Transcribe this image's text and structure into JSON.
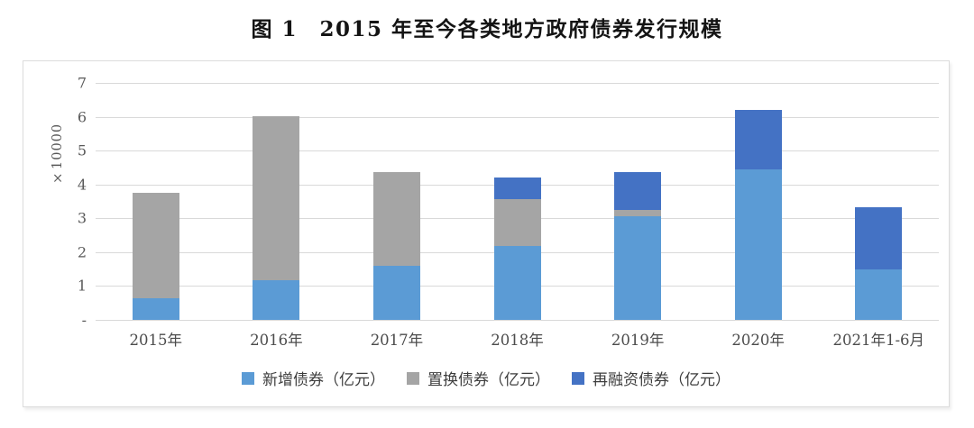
{
  "header": {
    "title": "图 1　2015 年至今各类地方政府债券发行规模"
  },
  "chart_data": {
    "type": "bar",
    "stacked": true,
    "figure_label": "图1",
    "title": "2015年至今各类地方政府债券发行规模",
    "unit_label": "×10000",
    "value_unit": "亿元",
    "categories": [
      "2015年",
      "2016年",
      "2017年",
      "2018年",
      "2019年",
      "2020年",
      "2021年1-6月"
    ],
    "series": [
      {
        "key": "new-bonds",
        "name": "新增债券（亿元）",
        "color": "#5B9BD5",
        "values": [
          0.65,
          1.17,
          1.6,
          2.18,
          3.06,
          4.45,
          1.48
        ]
      },
      {
        "key": "swap-bonds",
        "name": "置换债券（亿元）",
        "color": "#A5A5A5",
        "values": [
          3.1,
          4.85,
          2.77,
          1.38,
          0.19,
          0,
          0
        ]
      },
      {
        "key": "refinancing-bonds",
        "name": "再融资债券（亿元）",
        "color": "#4472C4",
        "values": [
          0,
          0,
          0,
          0.64,
          1.12,
          1.76,
          1.85
        ]
      }
    ],
    "stack_totals": [
      3.75,
      6.02,
      4.37,
      4.2,
      4.37,
      6.21,
      3.33
    ],
    "y_ticks_top_to_bottom": [
      "7",
      "6",
      "5",
      "4",
      "3",
      "2",
      "1",
      "-"
    ],
    "ylim": [
      0,
      7
    ],
    "grid": true,
    "legend_position": "bottom",
    "colors": {
      "gridline": "#d9d9d9",
      "axis_text": "#595959",
      "box_border": "#dcdcdc"
    }
  }
}
